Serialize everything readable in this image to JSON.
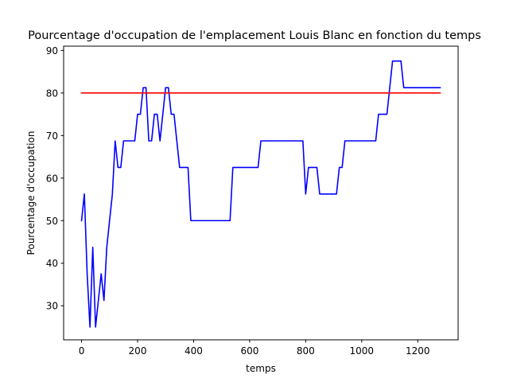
{
  "chart_data": {
    "type": "line",
    "title": "Pourcentage d'occupation de l'emplacement Louis Blanc en fonction du temps",
    "xlabel": "temps",
    "ylabel": "Pourcentage d'occupation",
    "xlim": [
      -64,
      1344
    ],
    "ylim": [
      22,
      91
    ],
    "xticks": [
      0,
      200,
      400,
      600,
      800,
      1000,
      1200
    ],
    "yticks": [
      30,
      40,
      50,
      60,
      70,
      80,
      90
    ],
    "grid": false,
    "legend": null,
    "series": [
      {
        "color": "#0000ff",
        "x": [
          0,
          10,
          20,
          30,
          40,
          50,
          60,
          70,
          80,
          90,
          100,
          110,
          120,
          130,
          140,
          150,
          160,
          170,
          180,
          190,
          200,
          210,
          220,
          230,
          240,
          250,
          260,
          270,
          280,
          290,
          300,
          310,
          320,
          330,
          340,
          350,
          360,
          370,
          380,
          390,
          400,
          410,
          420,
          430,
          440,
          450,
          460,
          470,
          480,
          490,
          500,
          510,
          520,
          530,
          540,
          550,
          560,
          570,
          580,
          590,
          600,
          610,
          620,
          630,
          640,
          650,
          660,
          670,
          680,
          690,
          700,
          710,
          720,
          730,
          740,
          750,
          760,
          770,
          780,
          790,
          800,
          810,
          820,
          830,
          840,
          850,
          860,
          870,
          880,
          890,
          900,
          910,
          920,
          930,
          940,
          950,
          960,
          970,
          980,
          990,
          1000,
          1010,
          1020,
          1030,
          1040,
          1050,
          1060,
          1070,
          1080,
          1090,
          1100,
          1110,
          1120,
          1130,
          1140,
          1150,
          1160,
          1170,
          1180,
          1190,
          1200,
          1210,
          1220,
          1230,
          1240,
          1250,
          1260,
          1270,
          1280
        ],
        "y": [
          50,
          56.25,
          37.5,
          25,
          43.75,
          25,
          31.25,
          37.5,
          31.25,
          43.75,
          50,
          56.25,
          68.75,
          62.5,
          62.5,
          68.75,
          68.75,
          68.75,
          68.75,
          68.75,
          75,
          75,
          81.25,
          81.25,
          68.75,
          68.75,
          75,
          75,
          68.75,
          75,
          81.25,
          81.25,
          75,
          75,
          68.75,
          62.5,
          62.5,
          62.5,
          62.5,
          50,
          50,
          50,
          50,
          50,
          50,
          50,
          50,
          50,
          50,
          50,
          50,
          50,
          50,
          50,
          62.5,
          62.5,
          62.5,
          62.5,
          62.5,
          62.5,
          62.5,
          62.5,
          62.5,
          62.5,
          68.75,
          68.75,
          68.75,
          68.75,
          68.75,
          68.75,
          68.75,
          68.75,
          68.75,
          68.75,
          68.75,
          68.75,
          68.75,
          68.75,
          68.75,
          68.75,
          56.25,
          62.5,
          62.5,
          62.5,
          62.5,
          56.25,
          56.25,
          56.25,
          56.25,
          56.25,
          56.25,
          56.25,
          62.5,
          62.5,
          68.75,
          68.75,
          68.75,
          68.75,
          68.75,
          68.75,
          68.75,
          68.75,
          68.75,
          68.75,
          68.75,
          68.75,
          75,
          75,
          75,
          75,
          81.25,
          87.5,
          87.5,
          87.5,
          87.5,
          81.25,
          81.25,
          81.25,
          81.25,
          81.25,
          81.25,
          81.25,
          81.25,
          81.25,
          81.25,
          81.25,
          81.25,
          81.25,
          81.25
        ]
      },
      {
        "color": "#ff0000",
        "x": [
          0,
          1280
        ],
        "y": [
          80,
          80
        ]
      }
    ]
  }
}
